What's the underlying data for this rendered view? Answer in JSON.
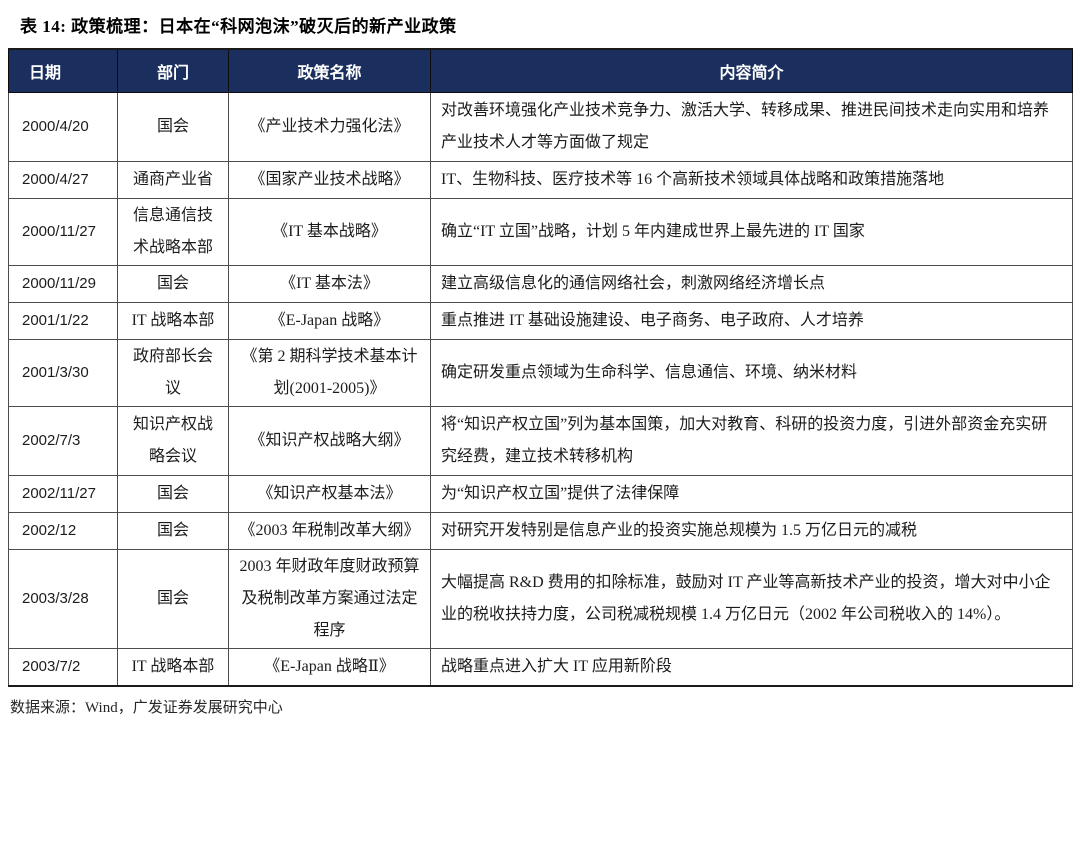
{
  "page": {
    "title": "表 14: 政策梳理：日本在“科网泡沫”破灭后的新产业政策",
    "source_note": "数据来源：Wind，广发证券发展研究中心"
  },
  "table": {
    "header_bg": "#1B2F5E",
    "columns": [
      "日期",
      "部门",
      "政策名称",
      "内容简介"
    ],
    "rows": [
      {
        "date": "2000/4/20",
        "dept": "国会",
        "policy": "《产业技术力强化法》",
        "desc": "对改善环境强化产业技术竞争力、激活大学、转移成果、推进民间技术走向实用和培养产业技术人才等方面做了规定"
      },
      {
        "date": "2000/4/27",
        "dept": "通商产业省",
        "policy": "《国家产业技术战略》",
        "desc": "IT、生物科技、医疗技术等 16 个高新技术领域具体战略和政策措施落地"
      },
      {
        "date": "2000/11/27",
        "dept": "信息通信技术战略本部",
        "policy": "《IT 基本战略》",
        "desc": "确立“IT 立国”战略，计划 5 年内建成世界上最先进的 IT 国家"
      },
      {
        "date": "2000/11/29",
        "dept": "国会",
        "policy": "《IT 基本法》",
        "desc": "建立高级信息化的通信网络社会，刺激网络经济增长点"
      },
      {
        "date": "2001/1/22",
        "dept": "IT 战略本部",
        "policy": "《E-Japan 战略》",
        "desc": "重点推进 IT 基础设施建设、电子商务、电子政府、人才培养"
      },
      {
        "date": "2001/3/30",
        "dept": "政府部长会议",
        "policy": "《第 2 期科学技术基本计划(2001-2005)》",
        "desc": "确定研发重点领域为生命科学、信息通信、环境、纳米材料"
      },
      {
        "date": "2002/7/3",
        "dept": "知识产权战略会议",
        "policy": "《知识产权战略大纲》",
        "desc": "将“知识产权立国”列为基本国策，加大对教育、科研的投资力度，引进外部资金充实研究经费，建立技术转移机构"
      },
      {
        "date": "2002/11/27",
        "dept": "国会",
        "policy": "《知识产权基本法》",
        "desc": "为“知识产权立国”提供了法律保障"
      },
      {
        "date": "2002/12",
        "dept": "国会",
        "policy": "《2003 年税制改革大纲》",
        "desc": "对研究开发特别是信息产业的投资实施总规模为 1.5 万亿日元的减税"
      },
      {
        "date": "2003/3/28",
        "dept": "国会",
        "policy": "2003 年财政年度财政预算及税制改革方案通过法定程序",
        "desc": "大幅提高 R&D 费用的扣除标准，鼓励对 IT 产业等高新技术产业的投资，增大对中小企业的税收扶持力度，公司税减税规模 1.4 万亿日元（2002 年公司税收入的 14%）。"
      },
      {
        "date": "2003/7/2",
        "dept": "IT 战略本部",
        "policy": "《E-Japan 战略Ⅱ》",
        "desc": "战略重点进入扩大 IT 应用新阶段"
      }
    ]
  }
}
